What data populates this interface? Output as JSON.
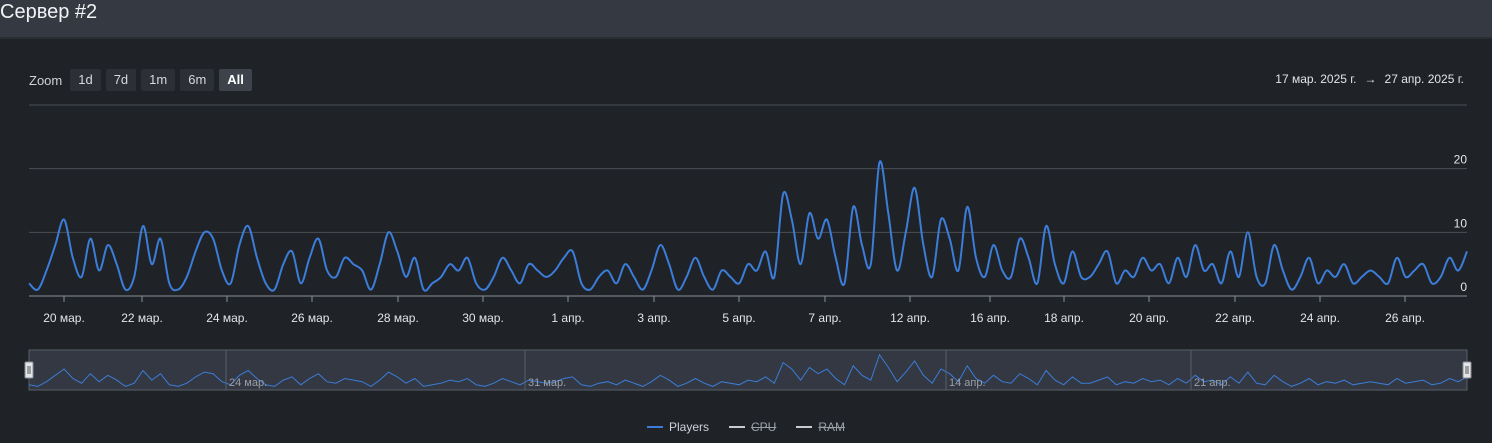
{
  "header": {
    "title": "Сервер #2"
  },
  "zoom": {
    "label": "Zoom",
    "buttons": [
      "1d",
      "7d",
      "1m",
      "6m",
      "All"
    ],
    "active": "All"
  },
  "range": {
    "from": "17 мар. 2025 г.",
    "arrow": "→",
    "to": "27 апр. 2025 г."
  },
  "legend": [
    {
      "name": "Players",
      "color": "#3b7dd8",
      "hidden": false
    },
    {
      "name": "CPU",
      "color": "#c8ccd0",
      "hidden": true
    },
    {
      "name": "RAM",
      "color": "#c8ccd0",
      "hidden": true
    }
  ],
  "chart_data": {
    "type": "line",
    "x_start": "2025-03-18",
    "x_end": "2025-04-28",
    "ylim": [
      0,
      30
    ],
    "y_ticks": [
      0,
      10,
      20
    ],
    "grid": true,
    "x_tick_labels": [
      "20 мар.",
      "22 мар.",
      "24 мар.",
      "26 мар.",
      "28 мар.",
      "30 мар.",
      "1 апр.",
      "3 апр.",
      "5 апр.",
      "7 апр.",
      "12 апр.",
      "16 апр.",
      "18 апр.",
      "20 апр.",
      "22 апр.",
      "24 апр.",
      "26 апр."
    ],
    "navigator_labels": [
      "24 мар.",
      "31 мар.",
      "14 апр.",
      "21 апр."
    ],
    "series": [
      {
        "name": "Players",
        "color": "#3b7dd8",
        "values": [
          2,
          1,
          4,
          8,
          12,
          6,
          3,
          9,
          4,
          8,
          5,
          1,
          3,
          11,
          5,
          9,
          2,
          1,
          3,
          7,
          10,
          9,
          4,
          2,
          8,
          11,
          6,
          2,
          1,
          5,
          7,
          2,
          6,
          9,
          4,
          3,
          6,
          5,
          4,
          1,
          5,
          10,
          7,
          3,
          6,
          1,
          2,
          3,
          5,
          4,
          6,
          2,
          1,
          3,
          6,
          4,
          2,
          5,
          4,
          3,
          4,
          6,
          7,
          2,
          1,
          3,
          4,
          2,
          5,
          3,
          1,
          4,
          8,
          5,
          1,
          3,
          6,
          3,
          1,
          4,
          3,
          2,
          5,
          4,
          7,
          3,
          16,
          12,
          5,
          13,
          9,
          12,
          6,
          2,
          14,
          8,
          5,
          21,
          13,
          4,
          10,
          17,
          8,
          3,
          12,
          9,
          4,
          14,
          6,
          3,
          8,
          4,
          3,
          9,
          6,
          2,
          11,
          5,
          2,
          7,
          3,
          3,
          5,
          7,
          2,
          4,
          3,
          6,
          4,
          5,
          2,
          6,
          3,
          8,
          4,
          5,
          2,
          7,
          3,
          10,
          3,
          2,
          8,
          4,
          1,
          3,
          6,
          2,
          4,
          3,
          5,
          2,
          3,
          4,
          3,
          2,
          6,
          3,
          4,
          5,
          2,
          3,
          6,
          4,
          7
        ]
      }
    ]
  }
}
